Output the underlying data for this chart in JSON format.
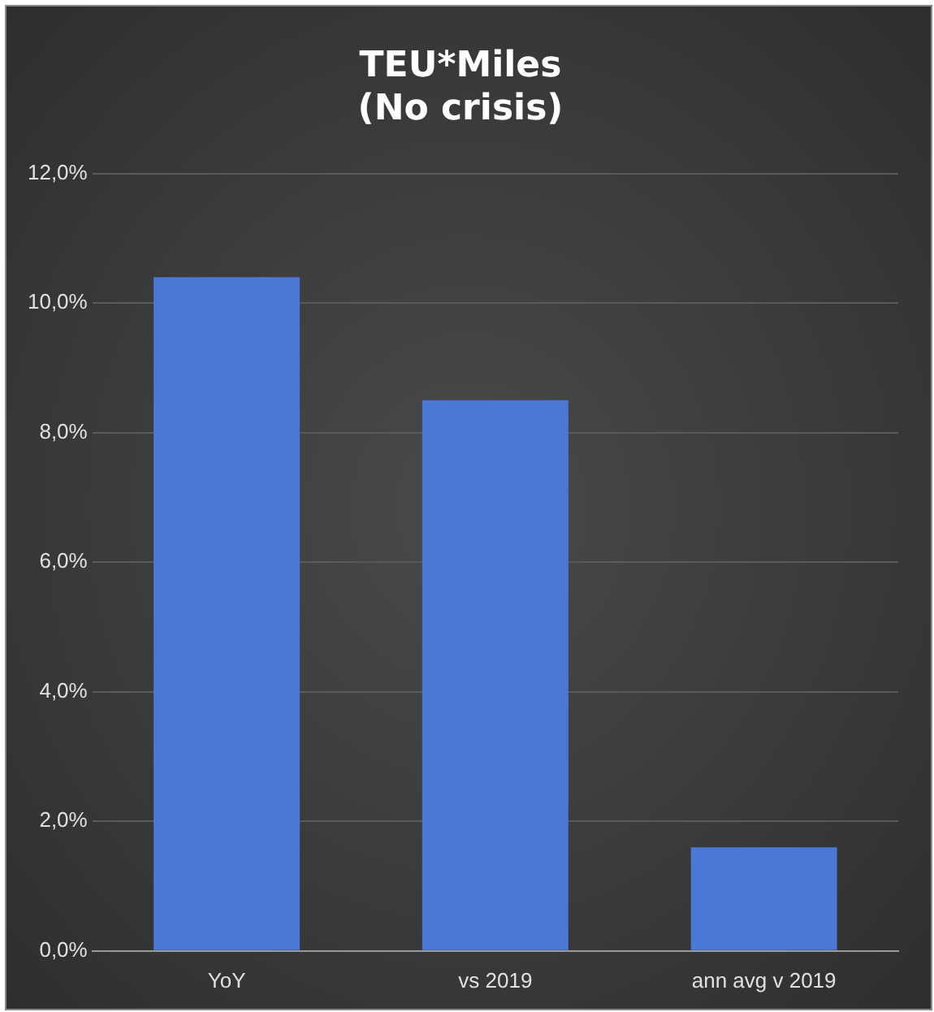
{
  "chart_data": {
    "type": "bar",
    "title": "TEU*Miles\n(No crisis)",
    "categories": [
      "YoY",
      "vs 2019",
      "ann avg v 2019"
    ],
    "values": [
      10.4,
      8.5,
      1.6
    ],
    "color": "#4a78d4",
    "ylim": [
      0,
      12
    ],
    "yticks": [
      {
        "value": 0,
        "label": "0,0%"
      },
      {
        "value": 2,
        "label": "2,0%"
      },
      {
        "value": 4,
        "label": "4,0%"
      },
      {
        "value": 6,
        "label": "6,0%"
      },
      {
        "value": 8,
        "label": "8,0%"
      },
      {
        "value": 10,
        "label": "10,0%"
      },
      {
        "value": 12,
        "label": "12,0%"
      }
    ],
    "grid": "y"
  }
}
